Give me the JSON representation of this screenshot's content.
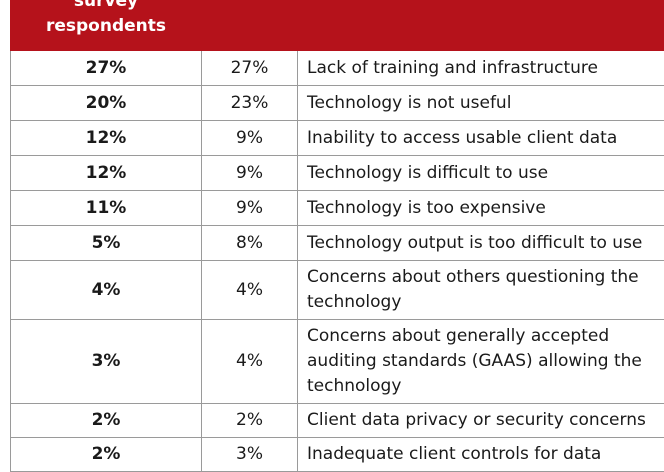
{
  "header": {
    "col1": "survey respondents",
    "col2": "",
    "col3": ""
  },
  "rows": [
    {
      "pct": "27%",
      "prev": "27%",
      "desc": "Lack of training and infrastructure"
    },
    {
      "pct": "20%",
      "prev": "23%",
      "desc": "Technology is not useful"
    },
    {
      "pct": "12%",
      "prev": "9%",
      "desc": "Inability to access usable client data"
    },
    {
      "pct": "12%",
      "prev": "9%",
      "desc": "Technology is difficult to use"
    },
    {
      "pct": "11%",
      "prev": "9%",
      "desc": "Technology is too expensive"
    },
    {
      "pct": "5%",
      "prev": "8%",
      "desc": "Technology output is too difficult to use"
    },
    {
      "pct": "4%",
      "prev": "4%",
      "desc": "Concerns about others questioning the technology"
    },
    {
      "pct": "3%",
      "prev": "4%",
      "desc": "Concerns about generally accepted auditing standards (GAAS) allowing the technology"
    },
    {
      "pct": "2%",
      "prev": "2%",
      "desc": "Client data privacy or security concerns"
    },
    {
      "pct": "2%",
      "prev": "3%",
      "desc": "Inadequate client controls for data"
    }
  ],
  "colors": {
    "header_bg": "#b5121b",
    "header_text": "#ffffff",
    "border": "#9a9a9a"
  }
}
